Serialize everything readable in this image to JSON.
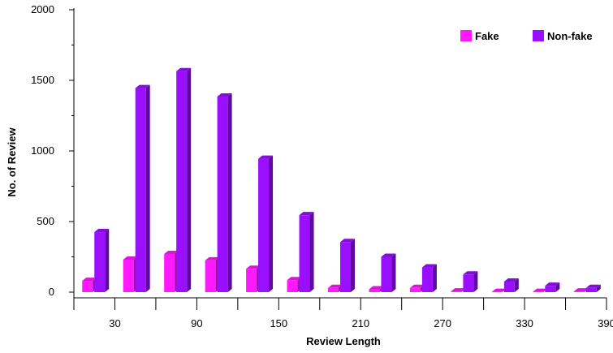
{
  "chart_data": {
    "type": "bar",
    "x": [
      15,
      45,
      75,
      105,
      135,
      165,
      195,
      225,
      255,
      285,
      315,
      345,
      375
    ],
    "x_tick_labels": [
      "30",
      "90",
      "150",
      "210",
      "270",
      "330",
      "390"
    ],
    "series": [
      {
        "name": "Fake",
        "color": "#FF19FF",
        "values": [
          80,
          230,
          270,
          225,
          165,
          85,
          30,
          20,
          30,
          5,
          2,
          2,
          5
        ]
      },
      {
        "name": "Non-fake",
        "color": "#9A0FFF",
        "values": [
          425,
          1445,
          1565,
          1385,
          945,
          545,
          355,
          250,
          175,
          125,
          75,
          45,
          30
        ]
      }
    ],
    "title": "",
    "xlabel": "Review Length",
    "ylabel": "No. of  Review",
    "ylim": [
      0,
      2000
    ],
    "y_ticks": [
      "0",
      "500",
      "1000",
      "1500",
      "2000"
    ],
    "legend_position": "top-right",
    "grid": false
  }
}
